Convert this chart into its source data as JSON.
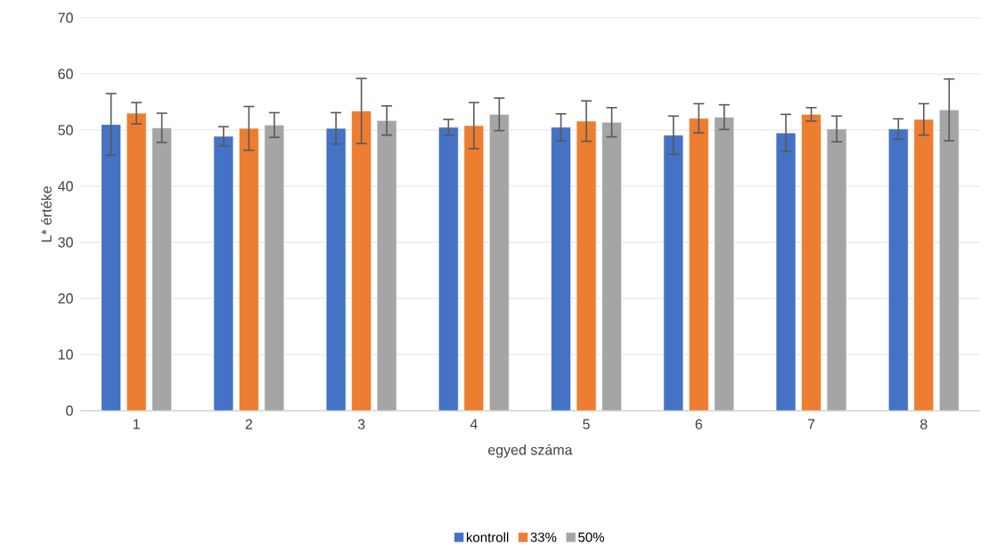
{
  "chart_data": {
    "type": "bar",
    "xlabel": "egyed száma",
    "ylabel": "L* értéke",
    "categories": [
      "1",
      "2",
      "3",
      "4",
      "5",
      "6",
      "7",
      "8"
    ],
    "series": [
      {
        "name": "kontroll",
        "color": "#4472c4",
        "values": [
          51.0,
          48.9,
          50.3,
          50.5,
          50.5,
          49.1,
          49.5,
          50.2
        ],
        "errors": [
          5.5,
          1.7,
          2.8,
          1.4,
          2.4,
          3.4,
          3.3,
          1.8
        ]
      },
      {
        "name": "33%",
        "color": "#ed7d31",
        "values": [
          53.0,
          50.3,
          53.4,
          50.8,
          51.6,
          52.1,
          52.8,
          51.9
        ],
        "errors": [
          1.9,
          3.9,
          5.8,
          4.1,
          3.6,
          2.6,
          1.2,
          2.8
        ]
      },
      {
        "name": "50%",
        "color": "#a5a5a5",
        "values": [
          50.4,
          50.9,
          51.7,
          52.8,
          51.4,
          52.3,
          50.2,
          53.6
        ],
        "errors": [
          2.6,
          2.2,
          2.6,
          2.9,
          2.6,
          2.2,
          2.3,
          5.5
        ]
      }
    ],
    "ylim": [
      0,
      70
    ],
    "yticks": [
      0,
      10,
      20,
      30,
      40,
      50,
      60,
      70
    ],
    "grid": "y",
    "legend": "bottom"
  }
}
